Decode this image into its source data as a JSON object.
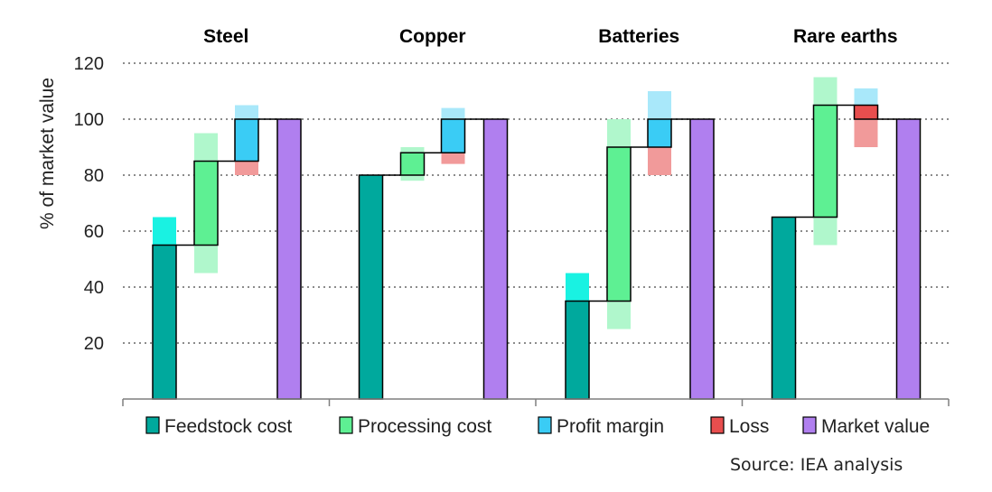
{
  "colors": {
    "feedstock": "#00A99D",
    "feedstock_range": "#19F2E2",
    "processing": "#5EF093",
    "processing_range": "#B0F7CC",
    "profit": "#3ACCF5",
    "profit_range": "#A9E8FA",
    "loss": "#E84E4E",
    "loss_range": "#F19A9A",
    "market": "#B07FEF",
    "axis": "#7F7F7F",
    "grid": "#8C8C8C"
  },
  "chart_data": {
    "type": "bar",
    "subtype": "waterfall",
    "ylabel": "% of market value",
    "ylim": [
      0,
      120
    ],
    "yticks": [
      20,
      40,
      60,
      80,
      100,
      120
    ],
    "grid": "horizontal dotted",
    "legend_position": "bottom",
    "legend": [
      {
        "key": "feedstock",
        "label": "Feedstock cost"
      },
      {
        "key": "processing",
        "label": "Processing cost"
      },
      {
        "key": "profit",
        "label": "Profit margin"
      },
      {
        "key": "loss",
        "label": "Loss"
      },
      {
        "key": "market",
        "label": "Market value"
      }
    ],
    "panels": [
      {
        "title": "Steel",
        "feedstock": {
          "value": 55,
          "range": [
            55,
            65
          ]
        },
        "processing": {
          "from": 55,
          "to": 85,
          "range": [
            45,
            95
          ]
        },
        "margin": {
          "type": "profit",
          "from": 85,
          "to": 100,
          "range": [
            100,
            105
          ],
          "loss_range": [
            80,
            85
          ]
        },
        "market_value": 100
      },
      {
        "title": "Copper",
        "feedstock": {
          "value": 80,
          "range": null
        },
        "processing": {
          "from": 80,
          "to": 88,
          "range": [
            78,
            90
          ]
        },
        "margin": {
          "type": "profit",
          "from": 88,
          "to": 100,
          "range": [
            100,
            104
          ],
          "loss_range": [
            84,
            88
          ]
        },
        "market_value": 100
      },
      {
        "title": "Batteries",
        "feedstock": {
          "value": 35,
          "range": [
            35,
            45
          ]
        },
        "processing": {
          "from": 35,
          "to": 90,
          "range": [
            25,
            100
          ]
        },
        "margin": {
          "type": "profit",
          "from": 90,
          "to": 100,
          "range": [
            100,
            110
          ],
          "loss_range": [
            80,
            90
          ]
        },
        "market_value": 100
      },
      {
        "title": "Rare earths",
        "feedstock": {
          "value": 65,
          "range": null
        },
        "processing": {
          "from": 65,
          "to": 105,
          "range": [
            55,
            115
          ]
        },
        "margin": {
          "type": "loss",
          "from": 105,
          "to": 100,
          "range": [
            90,
            100
          ],
          "profit_range": [
            105,
            111
          ]
        },
        "market_value": 100
      }
    ]
  },
  "source": "Source: IEA analysis"
}
